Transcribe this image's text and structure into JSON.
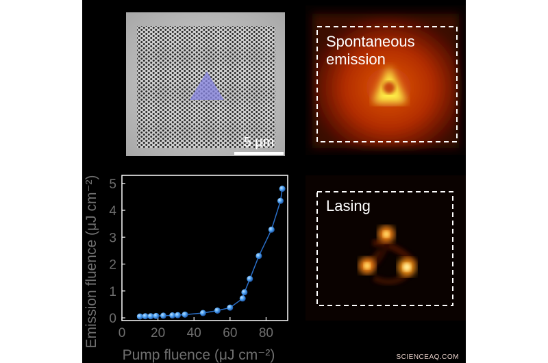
{
  "sem": {
    "scale_bar_label": "5 µm",
    "triangle_color": "#8a87e6"
  },
  "spontaneous": {
    "label": "Spontaneous\nemission"
  },
  "lasing": {
    "label": "Lasing"
  },
  "watermark": "SCIENCEAQ.COM",
  "chart_data": {
    "type": "line",
    "title": "",
    "xlabel": "Pump fluence (μJ cm⁻²)",
    "ylabel": "Emission fluence (μJ cm⁻²)",
    "xlim": [
      0,
      92
    ],
    "ylim": [
      -0.1,
      5.3
    ],
    "xticks": [
      0,
      20,
      40,
      60,
      80
    ],
    "yticks": [
      0,
      1,
      2,
      3,
      4,
      5
    ],
    "marker_color": "#4a9ff0",
    "line_color": "#2a6fc9",
    "x": [
      10,
      13,
      16,
      19,
      23,
      28,
      31,
      35,
      45,
      53,
      60,
      67,
      68,
      71,
      76,
      83,
      88,
      89
    ],
    "y": [
      0.05,
      0.06,
      0.06,
      0.07,
      0.08,
      0.09,
      0.1,
      0.12,
      0.18,
      0.27,
      0.38,
      0.72,
      0.95,
      1.45,
      2.3,
      3.28,
      4.35,
      4.8
    ]
  }
}
